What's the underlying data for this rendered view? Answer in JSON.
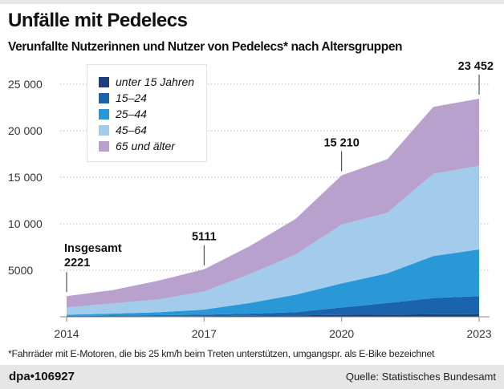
{
  "title": "Unfälle mit Pedelecs",
  "subtitle": "Verunfallte Nutzerinnen und Nutzer von Pedelecs* nach Altersgruppen",
  "footnote": "*Fahrräder mit E-Motoren, die bis 25 km/h beim Treten unterstützen, umgangspr. als E-Bike bezeichnet",
  "footer": {
    "id": "dpa•106927",
    "source": "Quelle: Statistisches Bundesamt"
  },
  "chart_data": {
    "type": "area",
    "stacked": true,
    "x": [
      2014,
      2015,
      2016,
      2017,
      2018,
      2019,
      2020,
      2021,
      2022,
      2023
    ],
    "xticks": [
      "2014",
      "2017",
      "2020",
      "2023"
    ],
    "yticks": [
      "5000",
      "10 000",
      "15 000",
      "20 000",
      "25 000"
    ],
    "ytick_values": [
      5000,
      10000,
      15000,
      20000,
      25000
    ],
    "ylim": [
      0,
      25000
    ],
    "grid": "horizontal dotted",
    "legend_position": "top-left",
    "series": [
      {
        "name": "unter 15 Jahren",
        "color": "#1b3f7d",
        "values": [
          30,
          40,
          55,
          80,
          110,
          150,
          200,
          230,
          270,
          290
        ]
      },
      {
        "name": "15–24",
        "color": "#1a63ad",
        "values": [
          70,
          90,
          115,
          150,
          220,
          350,
          800,
          1260,
          1740,
          1930
        ]
      },
      {
        "name": "25–44",
        "color": "#2a97d6",
        "values": [
          130,
          210,
          320,
          550,
          1160,
          1880,
          2590,
          3190,
          4520,
          5020
        ]
      },
      {
        "name": "45–64",
        "color": "#a3cbec",
        "values": [
          770,
          1100,
          1380,
          1950,
          3110,
          4320,
          6320,
          6520,
          8840,
          8990
        ]
      },
      {
        "name": "65 und älter",
        "color": "#b9a1cd",
        "values": [
          1221,
          1430,
          2010,
          2381,
          3010,
          3840,
          5300,
          5750,
          7190,
          7222
        ]
      }
    ],
    "annotations": [
      {
        "year": 2014,
        "label": "Insgesamt",
        "value_label": "2221",
        "total": 2221
      },
      {
        "year": 2017,
        "label": "",
        "value_label": "5111",
        "total": 5111
      },
      {
        "year": 2020,
        "label": "",
        "value_label": "15 210",
        "total": 15210
      },
      {
        "year": 2023,
        "label": "",
        "value_label": "23 452",
        "total": 23452
      }
    ]
  }
}
